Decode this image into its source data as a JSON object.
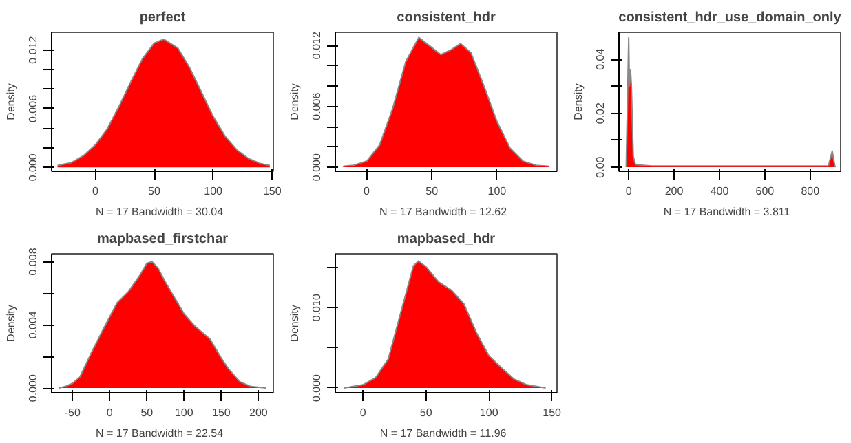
{
  "chart_data": [
    {
      "type": "area",
      "title": "perfect",
      "xlabel": "N = 17   Bandwidth = 30.04",
      "ylabel": "Density",
      "xlim": [
        -37,
        151
      ],
      "ylim": [
        -0.0004,
        0.0138
      ],
      "xticks": [
        0,
        50,
        100,
        150
      ],
      "yticks": [
        {
          "value": 0,
          "label": "0.000"
        },
        {
          "value": 0.002,
          "label": null
        },
        {
          "value": 0.004,
          "label": null
        },
        0.006,
        {
          "value": 0.008,
          "label": null
        },
        {
          "value": 0.01,
          "label": null
        },
        0.012
      ],
      "x": [
        -32,
        -20,
        -10,
        0,
        10,
        20,
        30,
        40,
        50,
        58,
        70,
        80,
        90,
        100,
        110,
        120,
        130,
        140,
        148
      ],
      "series": [
        {
          "color": "#ff0000",
          "values": [
            0.0002,
            0.0005,
            0.0012,
            0.0023,
            0.0039,
            0.0062,
            0.0087,
            0.0111,
            0.0127,
            0.0131,
            0.0122,
            0.0102,
            0.0077,
            0.0052,
            0.0032,
            0.0018,
            0.0009,
            0.0004,
            0.0002
          ]
        }
      ]
    },
    {
      "type": "area",
      "title": "consistent_hdr",
      "xlabel": "N = 17   Bandwidth = 12.62",
      "ylabel": "Density",
      "xlim": [
        -24,
        146
      ],
      "ylim": [
        -0.0004,
        0.0133
      ],
      "xticks": [
        0,
        50,
        100
      ],
      "yticks": [
        {
          "value": 0,
          "label": "0.000"
        },
        {
          "value": 0.002,
          "label": null
        },
        {
          "value": 0.004,
          "label": null
        },
        0.006,
        {
          "value": 0.008,
          "label": null
        },
        {
          "value": 0.01,
          "label": null
        },
        0.012
      ],
      "x": [
        -18,
        -10,
        0,
        10,
        20,
        30,
        40,
        50,
        57,
        65,
        72,
        80,
        90,
        100,
        110,
        120,
        130,
        140
      ],
      "series": [
        {
          "color": "#ff0000",
          "values": [
            0.0001,
            0.0002,
            0.0006,
            0.0022,
            0.0058,
            0.0104,
            0.0128,
            0.0118,
            0.0111,
            0.0116,
            0.0122,
            0.0113,
            0.008,
            0.0045,
            0.0019,
            0.0006,
            0.0002,
            0.0001
          ]
        }
      ]
    },
    {
      "type": "area",
      "title": "consistent_hdr_use_domain_only",
      "xlabel": "N = 17   Bandwidth = 3.811",
      "ylabel": "Density",
      "xlim": [
        -43,
        934
      ],
      "ylim": [
        -0.0015,
        0.05
      ],
      "xticks": [
        0,
        200,
        400,
        600,
        800
      ],
      "yticks": [
        {
          "value": 0,
          "label": "0.00"
        },
        {
          "value": 0.01,
          "label": null
        },
        0.02,
        {
          "value": 0.03,
          "label": null
        },
        0.04
      ],
      "x": [
        -11,
        0,
        3,
        8,
        12,
        20,
        30,
        100,
        300,
        500,
        700,
        880,
        897,
        905,
        910
      ],
      "series": [
        {
          "color": "#ff0000",
          "values": [
            0.0,
            0.048,
            0.03,
            0.036,
            0.03,
            0.004,
            0.001,
            0.0005,
            0.0005,
            0.0005,
            0.0005,
            0.0005,
            0.006,
            0.002,
            0.0
          ]
        }
      ]
    },
    {
      "type": "area",
      "title": "mapbased_firstchar",
      "xlabel": "N = 17   Bandwidth = 22.54",
      "ylabel": "Density",
      "xlim": [
        -78,
        220
      ],
      "ylim": [
        -0.0003,
        0.0085
      ],
      "xticks": [
        -50,
        0,
        50,
        100,
        150,
        200
      ],
      "yticks": [
        {
          "value": 0,
          "label": "0.000"
        },
        {
          "value": 0.002,
          "label": null
        },
        0.004,
        {
          "value": 0.006,
          "label": null
        },
        0.008
      ],
      "x": [
        -68,
        -60,
        -50,
        -40,
        -25,
        -10,
        0,
        10,
        25,
        40,
        50,
        57,
        65,
        75,
        90,
        100,
        115,
        125,
        135,
        150,
        160,
        175,
        190,
        210
      ],
      "series": [
        {
          "color": "#ff0000",
          "values": [
            0.0,
            0.0001,
            0.0003,
            0.0007,
            0.0022,
            0.0036,
            0.0045,
            0.0054,
            0.0061,
            0.0071,
            0.0079,
            0.008,
            0.0076,
            0.0067,
            0.0055,
            0.0047,
            0.0039,
            0.0035,
            0.0031,
            0.0019,
            0.0012,
            0.0004,
            0.0001,
            0.0
          ]
        }
      ]
    },
    {
      "type": "area",
      "title": "mapbased_hdr",
      "xlabel": "N = 17   Bandwidth = 11.96",
      "ylabel": "Density",
      "xlim": [
        -22,
        154
      ],
      "ylim": [
        -0.0006,
        0.0167
      ],
      "xticks": [
        0,
        50,
        100,
        150
      ],
      "yticks": [
        {
          "value": 0,
          "label": "0.000"
        },
        {
          "value": 0.005,
          "label": null
        },
        {
          "value": 0.01,
          "label": "0.010"
        },
        {
          "value": 0.015,
          "label": null
        }
      ],
      "x": [
        -15,
        0,
        10,
        20,
        30,
        40,
        44,
        50,
        60,
        70,
        80,
        90,
        100,
        110,
        120,
        130,
        145
      ],
      "series": [
        {
          "color": "#ff0000",
          "values": [
            0.0,
            0.0004,
            0.0013,
            0.0036,
            0.0094,
            0.0152,
            0.0158,
            0.0151,
            0.0132,
            0.0122,
            0.0105,
            0.0069,
            0.004,
            0.0025,
            0.0011,
            0.0004,
            0.0
          ]
        }
      ]
    }
  ]
}
